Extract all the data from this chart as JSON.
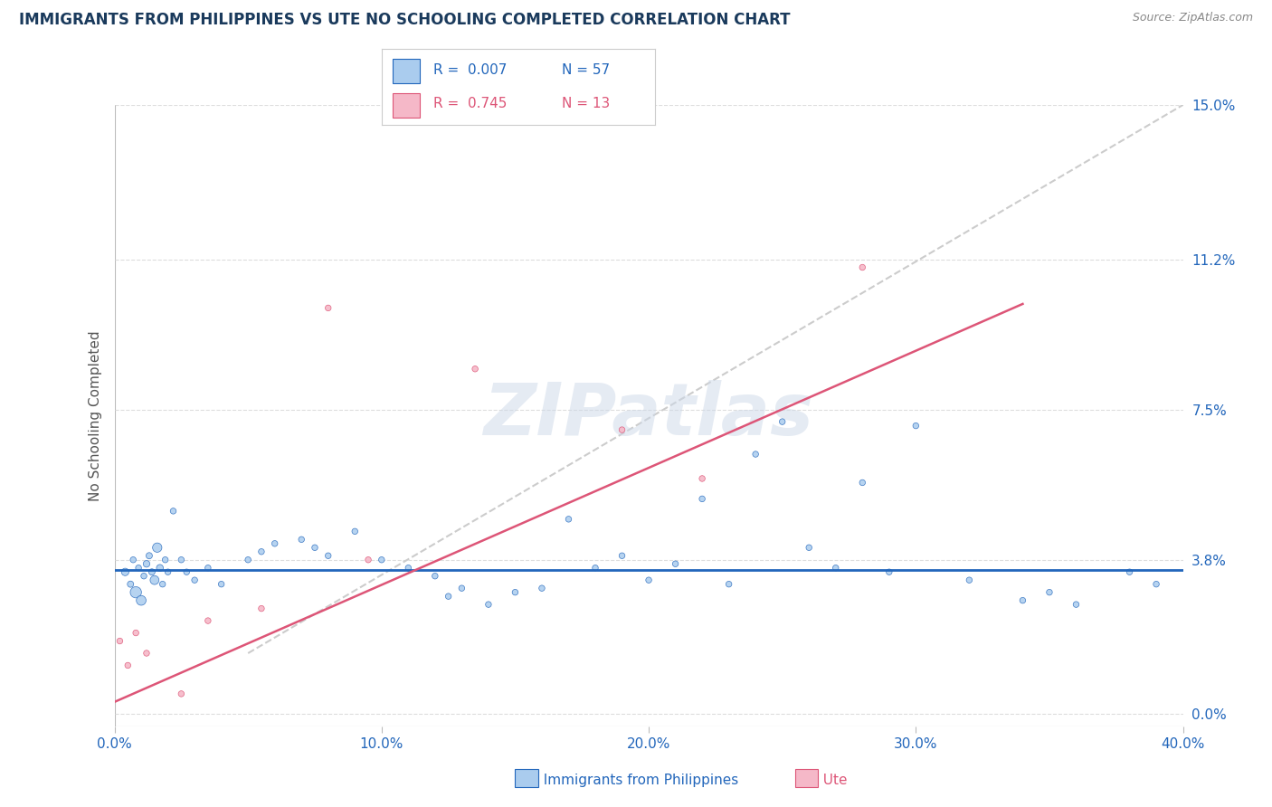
{
  "title": "IMMIGRANTS FROM PHILIPPINES VS UTE NO SCHOOLING COMPLETED CORRELATION CHART",
  "source": "Source: ZipAtlas.com",
  "ylabel": "No Schooling Completed",
  "xlim": [
    0.0,
    40.0
  ],
  "ylim": [
    -0.3,
    15.0
  ],
  "xticks": [
    0.0,
    10.0,
    20.0,
    30.0,
    40.0
  ],
  "yticks": [
    0.0,
    3.8,
    7.5,
    11.2,
    15.0
  ],
  "ytick_labels": [
    "0.0%",
    "3.8%",
    "7.5%",
    "11.2%",
    "15.0%"
  ],
  "xtick_labels": [
    "0.0%",
    "10.0%",
    "20.0%",
    "30.0%",
    "40.0%"
  ],
  "legend_r1": "R =  0.007",
  "legend_n1": "N = 57",
  "legend_r2": "R =  0.745",
  "legend_n2": "N = 13",
  "color_blue": "#aaccee",
  "color_pink": "#f5b8c8",
  "line_blue": "#2266bb",
  "line_pink": "#dd5577",
  "line_gray": "#cccccc",
  "title_color": "#1a3a5c",
  "source_color": "#888888",
  "watermark": "ZIPatlas",
  "blue_scatter_x": [
    0.4,
    0.6,
    0.7,
    0.8,
    0.9,
    1.0,
    1.1,
    1.2,
    1.3,
    1.4,
    1.5,
    1.6,
    1.7,
    1.8,
    1.9,
    2.0,
    2.2,
    2.5,
    2.7,
    3.0,
    3.5,
    4.0,
    5.0,
    5.5,
    6.0,
    7.0,
    7.5,
    8.0,
    9.0,
    10.0,
    11.0,
    12.0,
    12.5,
    13.0,
    14.0,
    15.0,
    16.0,
    17.0,
    18.0,
    19.0,
    20.0,
    21.0,
    22.0,
    23.0,
    24.0,
    25.0,
    26.0,
    27.0,
    28.0,
    29.0,
    30.0,
    32.0,
    34.0,
    35.0,
    36.0,
    38.0,
    39.0
  ],
  "blue_scatter_y": [
    3.5,
    3.2,
    3.8,
    3.0,
    3.6,
    2.8,
    3.4,
    3.7,
    3.9,
    3.5,
    3.3,
    4.1,
    3.6,
    3.2,
    3.8,
    3.5,
    5.0,
    3.8,
    3.5,
    3.3,
    3.6,
    3.2,
    3.8,
    4.0,
    4.2,
    4.3,
    4.1,
    3.9,
    4.5,
    3.8,
    3.6,
    3.4,
    2.9,
    3.1,
    2.7,
    3.0,
    3.1,
    4.8,
    3.6,
    3.9,
    3.3,
    3.7,
    5.3,
    3.2,
    6.4,
    7.2,
    4.1,
    3.6,
    5.7,
    3.5,
    7.1,
    3.3,
    2.8,
    3.0,
    2.7,
    3.5,
    3.2
  ],
  "blue_scatter_s": [
    35,
    25,
    22,
    80,
    22,
    60,
    22,
    28,
    25,
    25,
    50,
    55,
    30,
    22,
    22,
    22,
    22,
    22,
    22,
    22,
    22,
    22,
    22,
    22,
    22,
    22,
    22,
    22,
    22,
    22,
    22,
    22,
    22,
    22,
    22,
    22,
    22,
    22,
    22,
    22,
    22,
    22,
    22,
    22,
    22,
    22,
    22,
    22,
    22,
    22,
    22,
    22,
    22,
    22,
    22,
    22,
    22
  ],
  "pink_scatter_x": [
    0.2,
    0.5,
    0.8,
    1.2,
    2.5,
    3.5,
    5.5,
    8.0,
    9.5,
    13.5,
    19.0,
    22.0,
    28.0
  ],
  "pink_scatter_y": [
    1.8,
    1.2,
    2.0,
    1.5,
    0.5,
    2.3,
    2.6,
    10.0,
    3.8,
    8.5,
    7.0,
    5.8,
    11.0
  ],
  "pink_scatter_s": [
    22,
    22,
    22,
    22,
    22,
    22,
    22,
    22,
    22,
    22,
    22,
    22,
    22
  ],
  "blue_line_y": 3.55,
  "pink_line_x": [
    0.0,
    34.0
  ],
  "pink_line_y": [
    0.3,
    10.1
  ],
  "gray_line_x": [
    5.0,
    40.0
  ],
  "gray_line_y": [
    1.5,
    15.0
  ]
}
